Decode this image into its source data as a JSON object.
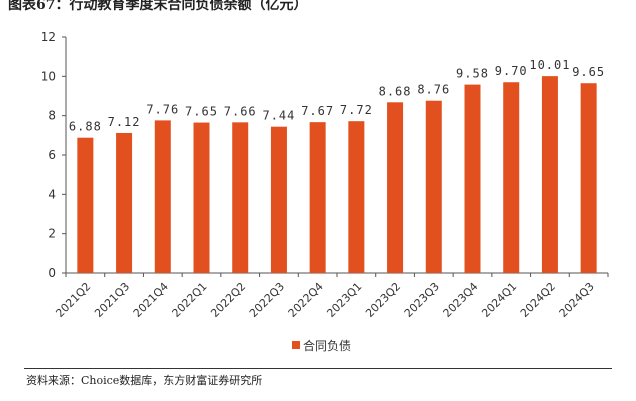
{
  "figure": {
    "title": "图表67：行动教育季度末合同负债余额（亿元）",
    "source": "资料来源：Choice数据库，东方财富证券研究所"
  },
  "colors": {
    "bar": "#E2501F",
    "axis": "#555555"
  },
  "chart_data": {
    "type": "bar",
    "categories": [
      "2021Q2",
      "2021Q3",
      "2021Q4",
      "2022Q1",
      "2022Q2",
      "2022Q3",
      "2022Q4",
      "2023Q1",
      "2023Q2",
      "2023Q3",
      "2023Q4",
      "2024Q1",
      "2024Q2",
      "2024Q3"
    ],
    "series": [
      {
        "name": "合同负债",
        "values": [
          6.88,
          7.12,
          7.76,
          7.65,
          7.66,
          7.44,
          7.67,
          7.72,
          8.68,
          8.76,
          9.58,
          9.7,
          10.01,
          9.65
        ],
        "labels": [
          "6.88",
          "7.12",
          "7.76",
          "7.65",
          "7.66",
          "7.44",
          "7.67",
          "7.72",
          "8.68",
          "8.76",
          "9.58",
          "9.70",
          "10.01",
          "9.65"
        ]
      }
    ],
    "ylim": [
      0,
      12
    ],
    "yticks": [
      "0",
      "2",
      "4",
      "6",
      "8",
      "10",
      "12"
    ],
    "grid": false,
    "legend": "bottom-center"
  }
}
